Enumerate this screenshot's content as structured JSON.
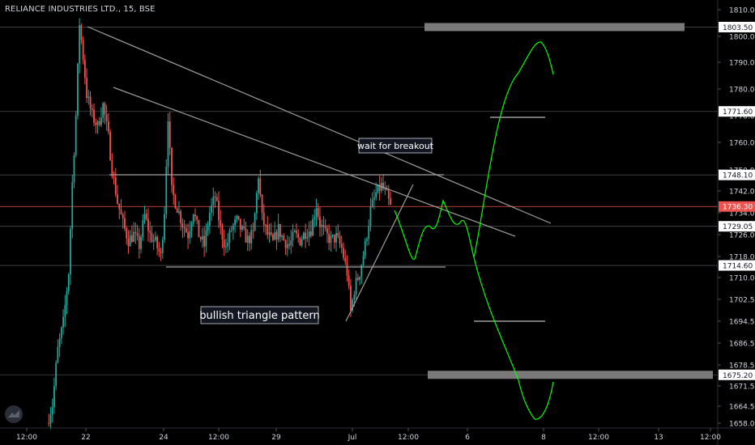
{
  "header": {
    "title": "RELIANCE INDUSTRIES LTD., 15, BSE"
  },
  "annotations": {
    "breakout": "wait for breakout",
    "pattern": "bullish triangle pattern"
  },
  "colors": {
    "up": "#26a69a",
    "down": "#ef5350",
    "projection": "#00ff00",
    "trendline": "#9e9e9e",
    "zone": "#7a7a7a",
    "last_price_line": "#ef5350",
    "text": "#d1d4dc"
  },
  "chart_data": {
    "type": "candlestick",
    "symbol": "RELIANCE INDUSTRIES LTD.",
    "interval": "15",
    "exchange": "BSE",
    "y_ticks": [
      1810,
      1800,
      1790,
      1780,
      1770,
      1760,
      1750,
      1742,
      1734,
      1726,
      1718,
      1710,
      1702.5,
      1694.5,
      1686.5,
      1678.5,
      1671.5,
      1664.5,
      1658
    ],
    "y_tick_labels": [
      "1810.00",
      "1800.00",
      "1790.00",
      "1780.00",
      "1770.00",
      "1760.00",
      "1750.00",
      "1742.00",
      "1734.00",
      "1726.00",
      "1718.00",
      "1710.00",
      "1702.50",
      "1694.50",
      "1686.50",
      "1678.50",
      "1671.50",
      "1664.50",
      "1658.00"
    ],
    "x_ticks": [
      "12:00",
      "22",
      "24",
      "12:00",
      "29",
      "Jul",
      "12:00",
      "6",
      "8",
      "12:00",
      "13",
      "12:00"
    ],
    "price_labels": [
      {
        "label": "1803.50",
        "value": 1803.5,
        "style": "level"
      },
      {
        "label": "1771.60",
        "value": 1771.6,
        "style": "level"
      },
      {
        "label": "1748.10",
        "value": 1748.1,
        "style": "level"
      },
      {
        "label": "1736.30",
        "value": 1736.3,
        "style": "last"
      },
      {
        "label": "1729.05",
        "value": 1729.05,
        "style": "level"
      },
      {
        "label": "1714.60",
        "value": 1714.6,
        "style": "level"
      },
      {
        "label": "1675.20",
        "value": 1675.2,
        "style": "level"
      }
    ],
    "zones": [
      {
        "name": "target-zone",
        "value": 1803.5
      },
      {
        "name": "support-zone",
        "value": 1675.2
      }
    ],
    "seed_path": [
      [
        0,
        1658
      ],
      [
        3,
        1665
      ],
      [
        6,
        1684
      ],
      [
        9,
        1694
      ],
      [
        12,
        1712
      ],
      [
        14,
        1745
      ],
      [
        16,
        1770
      ],
      [
        18,
        1805
      ],
      [
        20,
        1792
      ],
      [
        22,
        1778
      ],
      [
        25,
        1770
      ],
      [
        28,
        1766
      ],
      [
        31,
        1774
      ],
      [
        34,
        1762
      ],
      [
        36,
        1750
      ],
      [
        39,
        1738
      ],
      [
        42,
        1730
      ],
      [
        45,
        1724
      ],
      [
        48,
        1726
      ],
      [
        51,
        1722
      ],
      [
        54,
        1733
      ],
      [
        57,
        1726
      ],
      [
        60,
        1723
      ],
      [
        63,
        1718
      ],
      [
        65,
        1735
      ],
      [
        67,
        1770
      ],
      [
        69,
        1742
      ],
      [
        72,
        1736
      ],
      [
        75,
        1730
      ],
      [
        78,
        1726
      ],
      [
        81,
        1735
      ],
      [
        84,
        1726
      ],
      [
        87,
        1722
      ],
      [
        90,
        1734
      ],
      [
        93,
        1740
      ],
      [
        96,
        1728
      ],
      [
        99,
        1721
      ],
      [
        102,
        1728
      ],
      [
        105,
        1731
      ],
      [
        108,
        1727
      ],
      [
        111,
        1724
      ],
      [
        114,
        1726
      ],
      [
        117,
        1748
      ],
      [
        119,
        1732
      ],
      [
        122,
        1726
      ],
      [
        125,
        1723
      ],
      [
        128,
        1728
      ],
      [
        131,
        1724
      ],
      [
        134,
        1722
      ],
      [
        137,
        1726
      ],
      [
        140,
        1724
      ],
      [
        143,
        1727
      ],
      [
        146,
        1728
      ],
      [
        149,
        1737
      ],
      [
        151,
        1730
      ],
      [
        154,
        1726
      ],
      [
        157,
        1724
      ],
      [
        160,
        1725
      ],
      [
        163,
        1721
      ],
      [
        166,
        1712
      ],
      [
        168,
        1698
      ],
      [
        170,
        1706
      ],
      [
        173,
        1712
      ],
      [
        176,
        1722
      ],
      [
        179,
        1735
      ],
      [
        182,
        1741
      ],
      [
        185,
        1744
      ],
      [
        188,
        1740
      ],
      [
        190,
        1736
      ]
    ]
  }
}
